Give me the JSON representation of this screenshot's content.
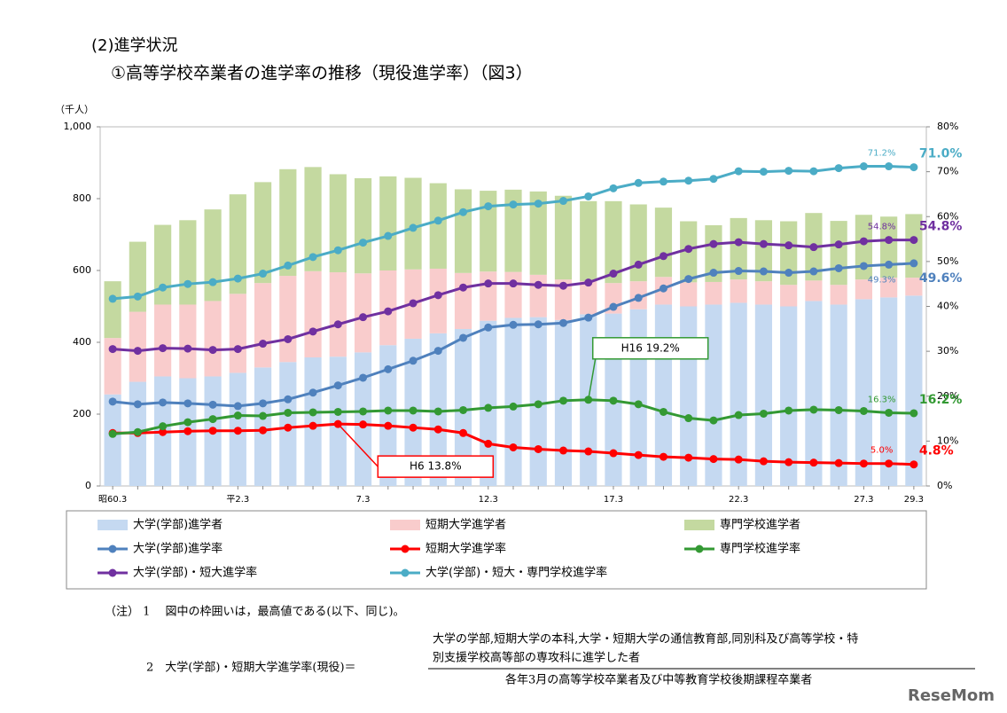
{
  "header": {
    "section": "(2)進学状況",
    "title": "①高等学校卒業者の進学率の推移（現役進学率）（図3）"
  },
  "chart_data": {
    "type": "combo",
    "y_label": "（千人）",
    "categories": [
      "昭60.3",
      null,
      null,
      null,
      null,
      "平2.3",
      null,
      null,
      null,
      null,
      "7.3",
      null,
      null,
      null,
      null,
      "12.3",
      null,
      null,
      null,
      null,
      "17.3",
      null,
      null,
      null,
      null,
      "22.3",
      null,
      null,
      null,
      null,
      "27.3",
      null,
      "29.3"
    ],
    "ylim": [
      0,
      1000
    ],
    "yticks": [
      0,
      200,
      400,
      600,
      800,
      {
        "value": 1000,
        "label": "1,000"
      }
    ],
    "y2lim": [
      0,
      80
    ],
    "y2ticks": [
      {
        "value": 0,
        "label": "0%"
      },
      {
        "value": 10,
        "label": "10%"
      },
      {
        "value": 20,
        "label": "20%"
      },
      {
        "value": 30,
        "label": "30%"
      },
      {
        "value": 40,
        "label": "40%"
      },
      {
        "value": 50,
        "label": "50%"
      },
      {
        "value": 60,
        "label": "60%"
      },
      {
        "value": 70,
        "label": "70%"
      },
      {
        "value": 80,
        "label": "80%"
      }
    ],
    "series": [
      {
        "name": "大学(学部)進学者",
        "type": "bar",
        "color": "#c5d9f1",
        "values": [
          255,
          290,
          305,
          300,
          305,
          315,
          330,
          345,
          358,
          360,
          372,
          392,
          410,
          425,
          437,
          460,
          468,
          470,
          462,
          478,
          480,
          492,
          505,
          500,
          505,
          510,
          505,
          500,
          515,
          505,
          520,
          525,
          530
        ]
      },
      {
        "name": "短期大学進学者",
        "type": "bar",
        "color": "#f9cccc",
        "values": [
          157,
          195,
          200,
          205,
          210,
          220,
          235,
          240,
          240,
          235,
          220,
          208,
          193,
          180,
          156,
          137,
          128,
          118,
          113,
          92,
          85,
          78,
          77,
          67,
          63,
          65,
          65,
          60,
          57,
          55,
          55,
          55,
          50
        ]
      },
      {
        "name": "専門学校進学者",
        "type": "bar",
        "color": "#c4d9a0",
        "values": [
          158,
          195,
          222,
          235,
          255,
          277,
          281,
          297,
          290,
          273,
          265,
          262,
          255,
          238,
          233,
          225,
          229,
          232,
          233,
          223,
          228,
          214,
          193,
          170,
          158,
          171,
          170,
          177,
          188,
          178,
          180,
          170,
          177
        ]
      },
      {
        "name": "大学(学部)進学率",
        "type": "line",
        "axis": "y2",
        "color": "#4f81bd",
        "values": [
          18.8,
          18.2,
          18.6,
          18.4,
          18.1,
          17.8,
          18.4,
          19.3,
          20.8,
          22.4,
          24.1,
          26.0,
          27.9,
          30.1,
          33.0,
          35.3,
          35.9,
          36.0,
          36.3,
          37.5,
          39.9,
          41.9,
          44.0,
          46.1,
          47.5,
          47.9,
          47.8,
          47.5,
          47.8,
          48.5,
          49.0,
          49.3,
          49.6
        ],
        "value_labels": [
          null,
          null,
          null,
          null,
          null,
          null,
          null,
          null,
          null,
          null,
          null,
          null,
          null,
          null,
          null,
          null,
          null,
          null,
          null,
          null,
          null,
          null,
          null,
          null,
          null,
          null,
          null,
          null,
          null,
          null,
          null,
          "49.3%",
          "49.6%"
        ]
      },
      {
        "name": "短期大学進学率",
        "type": "line",
        "axis": "y2",
        "color": "#ff0000",
        "values": [
          11.8,
          11.8,
          12.0,
          12.2,
          12.3,
          12.3,
          12.4,
          13.0,
          13.4,
          13.8,
          13.7,
          13.4,
          13.0,
          12.6,
          11.8,
          9.4,
          8.6,
          8.2,
          7.9,
          7.7,
          7.3,
          6.9,
          6.5,
          6.3,
          6.0,
          5.9,
          5.5,
          5.3,
          5.2,
          5.1,
          5.0,
          5.0,
          4.8
        ],
        "value_labels": [
          null,
          null,
          null,
          null,
          null,
          null,
          null,
          null,
          null,
          null,
          null,
          null,
          null,
          null,
          null,
          null,
          null,
          null,
          null,
          null,
          null,
          null,
          null,
          null,
          null,
          null,
          null,
          null,
          null,
          null,
          null,
          "5.0%",
          "4.8%"
        ],
        "callout": "H6  13.8%"
      },
      {
        "name": "専門学校進学率",
        "type": "line",
        "axis": "y2",
        "color": "#339933",
        "values": [
          11.6,
          12.0,
          13.3,
          14.2,
          14.9,
          15.7,
          15.6,
          16.3,
          16.4,
          16.5,
          16.6,
          16.8,
          16.8,
          16.6,
          16.9,
          17.4,
          17.7,
          18.2,
          19.0,
          19.2,
          19.0,
          18.2,
          16.5,
          15.1,
          14.6,
          15.8,
          16.1,
          16.8,
          17.0,
          16.9,
          16.7,
          16.3,
          16.2
        ],
        "value_labels": [
          null,
          null,
          null,
          null,
          null,
          null,
          null,
          null,
          null,
          null,
          null,
          null,
          null,
          null,
          null,
          null,
          null,
          null,
          null,
          null,
          null,
          null,
          null,
          null,
          null,
          null,
          null,
          null,
          null,
          null,
          null,
          "16.3%",
          "16.2%"
        ],
        "callout": "H16  19.2%"
      },
      {
        "name": "大学(学部)・短大進学率",
        "type": "line",
        "axis": "y2",
        "color": "#7030a0",
        "values": [
          30.5,
          30.1,
          30.7,
          30.6,
          30.3,
          30.5,
          31.7,
          32.7,
          34.4,
          36.0,
          37.6,
          38.9,
          40.7,
          42.5,
          44.2,
          45.1,
          45.1,
          44.8,
          44.6,
          45.3,
          47.3,
          49.3,
          51.2,
          52.8,
          53.9,
          54.3,
          53.9,
          53.6,
          53.2,
          53.8,
          54.5,
          54.8,
          54.8
        ],
        "value_labels": [
          null,
          null,
          null,
          null,
          null,
          null,
          null,
          null,
          null,
          null,
          null,
          null,
          null,
          null,
          null,
          null,
          null,
          null,
          null,
          null,
          null,
          null,
          null,
          null,
          null,
          null,
          null,
          null,
          null,
          null,
          null,
          "54.8%",
          "54.8%"
        ]
      },
      {
        "name": "大学(学部)・短大・専門学校進学率",
        "type": "line",
        "axis": "y2",
        "color": "#4bacc6",
        "values": [
          41.7,
          42.2,
          44.2,
          45.0,
          45.4,
          46.2,
          47.3,
          49.1,
          51.0,
          52.5,
          54.2,
          55.7,
          57.5,
          59.1,
          61.0,
          62.3,
          62.7,
          62.9,
          63.5,
          64.5,
          66.3,
          67.5,
          67.8,
          68.0,
          68.4,
          70.1,
          70.0,
          70.2,
          70.1,
          70.8,
          71.2,
          71.2,
          71.0
        ],
        "value_labels": [
          null,
          null,
          null,
          null,
          null,
          null,
          null,
          null,
          null,
          null,
          null,
          null,
          null,
          null,
          null,
          null,
          null,
          null,
          null,
          null,
          null,
          null,
          null,
          null,
          null,
          null,
          null,
          null,
          null,
          null,
          null,
          "71.2%",
          "71.0%"
        ]
      }
    ]
  },
  "notes": {
    "note1": "（注）  1　 図中の枠囲いは，最高値である(以下、同じ)。",
    "note2_label": "2　大学(学部)・短期大学進学率(現役)＝",
    "numerator_line1": "大学の学部,短期大学の本科,大学・短期大学の通信教育部,同別科及び高等学校・特",
    "numerator_line2": "別支援学校高等部の専攻科に進学した者",
    "denominator": "各年3月の高等学校卒業者及び中等教育学校後期課程卒業者"
  },
  "watermark": "ReseMom"
}
